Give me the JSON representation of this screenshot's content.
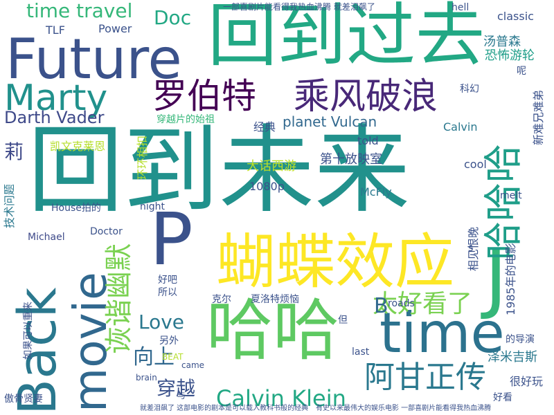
{
  "words": [
    {
      "text": "回到未来",
      "color": "#21918c"
    },
    {
      "text": "回到过去",
      "color": "#22a884"
    },
    {
      "text": "Future",
      "color": "#3b528b"
    },
    {
      "text": "Back",
      "color": "#2a788e"
    },
    {
      "text": "蝴蝶效应",
      "color": "#fde725"
    },
    {
      "text": "哈哈",
      "color": "#5ec962"
    },
    {
      "text": "movie",
      "color": "#31688e"
    },
    {
      "text": "time",
      "color": "#2c728e"
    },
    {
      "text": "P",
      "color": "#3b528b"
    },
    {
      "text": "J",
      "color": "#35b779"
    },
    {
      "text": "Marty",
      "color": "#21918c"
    },
    {
      "text": "罗伯特",
      "color": "#440154"
    },
    {
      "text": "乘风破浪",
      "color": "#482878"
    },
    {
      "text": "哈哈哈",
      "color": "#1f9e89"
    },
    {
      "text": "阿甘正传",
      "color": "#2a788e"
    },
    {
      "text": "太好看了",
      "color": "#7ad151"
    },
    {
      "text": "诙谐幽默",
      "color": "#7ad151"
    },
    {
      "text": "Calvin Klein",
      "color": "#22a884"
    },
    {
      "text": "time travel",
      "color": "#35b779"
    },
    {
      "text": "Darth Vader",
      "color": "#3e4989"
    },
    {
      "text": "Doc",
      "color": "#22a884"
    },
    {
      "text": "Love",
      "color": "#2a788e"
    },
    {
      "text": "穿越",
      "color": "#3b528b"
    },
    {
      "text": "向上",
      "color": "#31688e"
    },
    {
      "text": "planet Vulcan",
      "color": "#31688e"
    },
    {
      "text": "B",
      "color": "#31688e"
    },
    {
      "text": "莉",
      "color": "#3e4989"
    },
    {
      "text": "TLF",
      "color": "#3b528b"
    },
    {
      "text": "Power",
      "color": "#3b528b"
    },
    {
      "text": "classic",
      "color": "#3b528b"
    },
    {
      "text": "hell",
      "color": "#3b528b"
    },
    {
      "text": "汤普森",
      "color": "#2a788e"
    },
    {
      "text": "恐怖游轮",
      "color": "#1f9e89"
    },
    {
      "text": "凯文克莱恩",
      "color": "#b5de2b"
    },
    {
      "text": "环环相扣",
      "color": "#b5de2b"
    },
    {
      "text": "技术问题",
      "color": "#2a788e"
    },
    {
      "text": "大话西游",
      "color": "#bddf26"
    },
    {
      "text": "第十放映室",
      "color": "#3b528b"
    },
    {
      "text": "经典",
      "color": "#3b528b"
    },
    {
      "text": "科幻",
      "color": "#3b528b"
    },
    {
      "text": "穿越片的始祖",
      "color": "#35b779"
    },
    {
      "text": "told",
      "color": "#3b528b"
    },
    {
      "text": "cool",
      "color": "#3b528b"
    },
    {
      "text": "Calvin",
      "color": "#2a788e"
    },
    {
      "text": "1080p",
      "color": "#3b528b"
    },
    {
      "text": "McFly",
      "color": "#2a788e"
    },
    {
      "text": "House拍的",
      "color": "#3b528b"
    },
    {
      "text": "night",
      "color": "#3b528b"
    },
    {
      "text": "Michael",
      "color": "#3e4989"
    },
    {
      "text": "Doctor",
      "color": "#3b528b"
    },
    {
      "text": "melt",
      "color": "#3b528b"
    },
    {
      "text": "所以",
      "color": "#3b528b"
    },
    {
      "text": "好吧",
      "color": "#3b528b"
    },
    {
      "text": "克尔",
      "color": "#3b528b"
    },
    {
      "text": "夏洛特烦恼",
      "color": "#3b528b"
    },
    {
      "text": "另外",
      "color": "#3b528b"
    },
    {
      "text": "如果可以重来",
      "color": "#3b528b"
    },
    {
      "text": "傲骨贤妻",
      "color": "#3b528b"
    },
    {
      "text": "BEAT",
      "color": "#b5de2b"
    },
    {
      "text": "came",
      "color": "#3b528b"
    },
    {
      "text": "brain",
      "color": "#3b528b"
    },
    {
      "text": "last",
      "color": "#3b528b"
    },
    {
      "text": "泽米吉斯",
      "color": "#2a788e"
    },
    {
      "text": "的导演",
      "color": "#3b528b"
    },
    {
      "text": "很好玩",
      "color": "#3b528b"
    },
    {
      "text": "好看",
      "color": "#3b528b"
    },
    {
      "text": "roads",
      "color": "#3b528b"
    },
    {
      "text": "但",
      "color": "#3b528b"
    },
    {
      "text": "与",
      "color": "#3b528b"
    },
    {
      "text": "1985年的电影",
      "color": "#3b528b"
    },
    {
      "text": "相见恨晚",
      "color": "#3b528b"
    },
    {
      "text": "s",
      "color": "#3b528b"
    },
    {
      "text": "呢",
      "color": "#3b528b"
    },
    {
      "text": "新难兄难弟",
      "color": "#3b528b"
    },
    {
      "text": "一部喜剧片能看得我热血沸腾 就差泪飙了",
      "color": "#3b528b"
    },
    {
      "text": "就差泪飙了 这部电影的剧本是可以载入教科书般的经典",
      "color": "#3b528b"
    },
    {
      "text": "有史以来最伟大的娱乐电影 一部喜剧片能看得我热血沸腾",
      "color": "#3b528b"
    }
  ]
}
